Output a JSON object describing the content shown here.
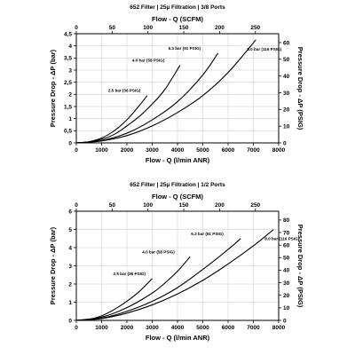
{
  "chart_data": [
    {
      "type": "line",
      "title": "652 Filter | 25µ Filtration | 3/8 Ports",
      "xlabel": "Flow - Q (l/min ANR)",
      "x2label": "Flow - Q (SCFM)",
      "ylabel": "Pressure Drop - ΔP (bar)",
      "y2label": "Pressure Drop - ΔP (PSIG)",
      "xlim": [
        0,
        8000
      ],
      "ylim": [
        0,
        4.5
      ],
      "x2lim": [
        0,
        282.5
      ],
      "y2lim": [
        0,
        65.3
      ],
      "xticks": [
        0,
        1000,
        2000,
        3000,
        4000,
        5000,
        6000,
        7000,
        8000
      ],
      "yticks": [
        0,
        0.5,
        1,
        1.5,
        2,
        2.5,
        3,
        3.5,
        4,
        4.5
      ],
      "ytick_labels": [
        "0",
        "0,5",
        "1",
        "1,5",
        "2",
        "2,5",
        "3",
        "3,5",
        "4",
        "4,5"
      ],
      "x2ticks": [
        0,
        50,
        100,
        150,
        200,
        250
      ],
      "y2ticks": [
        0,
        10,
        20,
        30,
        40,
        50,
        60
      ],
      "grid": true,
      "series": [
        {
          "name": "2.5 bar (36 PSIG)",
          "x": [
            0,
            500,
            1000,
            1500,
            2000,
            2500,
            2800
          ],
          "y": [
            0,
            0.05,
            0.2,
            0.5,
            0.95,
            1.55,
            1.95
          ]
        },
        {
          "name": "4.0 bar (58 PSIG)",
          "x": [
            0,
            500,
            1000,
            1500,
            2000,
            2500,
            3000,
            3500,
            4100
          ],
          "y": [
            0,
            0.04,
            0.15,
            0.35,
            0.7,
            1.1,
            1.6,
            2.2,
            3.2
          ]
        },
        {
          "name": "6.3 bar (91 PSIG)",
          "x": [
            0,
            1000,
            2000,
            3000,
            4000,
            5000,
            5600
          ],
          "y": [
            0,
            0.1,
            0.4,
            0.95,
            1.7,
            2.8,
            3.7
          ]
        },
        {
          "name": "8.0 bar (116 PSIG)",
          "x": [
            0,
            1000,
            2000,
            3000,
            4000,
            5000,
            6000,
            7100
          ],
          "y": [
            0,
            0.08,
            0.3,
            0.7,
            1.25,
            1.95,
            2.9,
            4.25
          ]
        }
      ]
    },
    {
      "type": "line",
      "title": "652 Filter | 25µ Filtration | 1/2 Ports",
      "xlabel": "Flow - Q (l/min ANR)",
      "x2label": "Flow - Q (SCFM)",
      "ylabel": "Pressure Drop - ΔP (bar)",
      "y2label": "Pressure Drop - ΔP (PSIG)",
      "xlim": [
        0,
        8000
      ],
      "ylim": [
        0,
        6
      ],
      "x2lim": [
        0,
        282.5
      ],
      "y2lim": [
        0,
        87
      ],
      "xticks": [
        0,
        1000,
        2000,
        3000,
        4000,
        5000,
        6000,
        7000,
        8000
      ],
      "yticks": [
        0,
        1,
        2,
        3,
        4,
        5,
        6
      ],
      "ytick_labels": [
        "0",
        "1",
        "2",
        "3",
        "4",
        "5",
        "6"
      ],
      "x2ticks": [
        0,
        50,
        100,
        150,
        200,
        250
      ],
      "y2ticks": [
        0,
        10,
        20,
        30,
        40,
        50,
        60,
        70,
        80
      ],
      "grid": true,
      "series": [
        {
          "name": "2.5 bar (36 PSIG)",
          "x": [
            0,
            500,
            1000,
            1500,
            2000,
            2500,
            3000
          ],
          "y": [
            0,
            0.06,
            0.25,
            0.6,
            1.05,
            1.6,
            2.3
          ]
        },
        {
          "name": "4.0 bar (58 PSIG)",
          "x": [
            0,
            1000,
            2000,
            3000,
            3500,
            4000,
            4500
          ],
          "y": [
            0,
            0.18,
            0.7,
            1.5,
            2.05,
            2.7,
            3.5
          ]
        },
        {
          "name": "6.3 bar (91 PSIG)",
          "x": [
            0,
            1000,
            2000,
            3000,
            4000,
            5000,
            6000,
            6500
          ],
          "y": [
            0,
            0.12,
            0.5,
            1.05,
            1.8,
            2.8,
            3.9,
            4.5
          ]
        },
        {
          "name": "8.0 bar (116 PSIG)",
          "x": [
            0,
            1000,
            2000,
            3000,
            4000,
            5000,
            6000,
            7000,
            7800
          ],
          "y": [
            0,
            0.1,
            0.4,
            0.85,
            1.45,
            2.2,
            3.1,
            4.1,
            5.0
          ]
        }
      ]
    }
  ]
}
